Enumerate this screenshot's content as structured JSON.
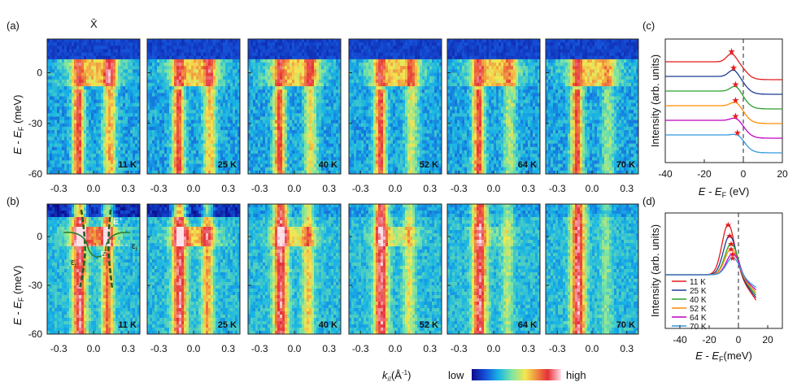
{
  "figure": {
    "panel_labels": {
      "a": "(a)",
      "b": "(b)",
      "c": "(c)",
      "d": "(d)"
    },
    "xbar_label": "X̄",
    "colorbar": {
      "low": "low",
      "high": "high",
      "colors": [
        "#0a0a8c",
        "#1550d8",
        "#18b4e6",
        "#7fe6a0",
        "#f5e650",
        "#f09040",
        "#e6303a",
        "#ffe0e8"
      ]
    },
    "row_axis": {
      "ylabel_a": "E - E",
      "ylabel_b": "E - E",
      "ylabel_sub": "F",
      "ylabel_unit": " (meV)",
      "yticks": [
        "0",
        "-30",
        "-60"
      ],
      "xticks": [
        "-0.3",
        "0.0",
        "0.3"
      ],
      "xlabel_k": "k",
      "xlabel_sub": "//",
      "xlabel_unit": "(Å",
      "xlabel_sup": "-1",
      "xlabel_close": ")"
    },
    "annotations_b": {
      "E": "E",
      "E_sup": "+",
      "E2": "E",
      "E2_sup": "-",
      "eps": "ε",
      "eps_sub": "f"
    }
  },
  "chart_data": [
    {
      "type": "heatmap",
      "panel": "a",
      "temperatures": [
        "11 K",
        "25 K",
        "40 K",
        "52 K",
        "64 K",
        "70 K"
      ],
      "xlim": [
        -0.4,
        0.4
      ],
      "ylim": [
        -60,
        20
      ],
      "xticks": [
        -0.3,
        0.0,
        0.3
      ],
      "yticks": [
        0,
        -30,
        -60
      ]
    },
    {
      "type": "heatmap",
      "panel": "b",
      "temperatures": [
        "11 K",
        "25 K",
        "40 K",
        "52 K",
        "64 K",
        "70 K"
      ],
      "xlim": [
        -0.4,
        0.4
      ],
      "ylim": [
        -60,
        20
      ],
      "xticks": [
        -0.3,
        0.0,
        0.3
      ],
      "yticks": [
        0,
        -30,
        -60
      ]
    },
    {
      "type": "line",
      "panel": "c",
      "xlabel": "E - E",
      "xlabel_sub": "F",
      "xlabel_unit": " (eV)",
      "ylabel": "Intensity (arb. units)",
      "xlim": [
        -40,
        20
      ],
      "xticks": [
        "-40",
        "-20",
        "0",
        "20"
      ],
      "series": [
        {
          "color": "#e41a1c",
          "offset": 5,
          "peak": -6
        },
        {
          "color": "#1f3a93",
          "offset": 4,
          "peak": -5
        },
        {
          "color": "#2ca02c",
          "offset": 3,
          "peak": -4
        },
        {
          "color": "#ff8c00",
          "offset": 2,
          "peak": -4
        },
        {
          "color": "#c000c0",
          "offset": 1,
          "peak": -4
        },
        {
          "color": "#3399dd",
          "offset": 0,
          "peak": -3
        }
      ]
    },
    {
      "type": "line",
      "panel": "d",
      "xlabel": "E - E",
      "xlabel_sub": "F",
      "xlabel_unit": "(meV)",
      "ylabel": "Intensity (arb. units)",
      "xlim": [
        -50,
        30
      ],
      "xticks": [
        "-40",
        "-20",
        "0",
        "20"
      ],
      "legend": "left",
      "series": [
        {
          "name": "11 K",
          "color": "#e41a1c",
          "peak": -7,
          "height": 1.0
        },
        {
          "name": "25 K",
          "color": "#1f3a93",
          "peak": -6,
          "height": 0.78
        },
        {
          "name": "40 K",
          "color": "#2ca02c",
          "peak": -5,
          "height": 0.62
        },
        {
          "name": "52 K",
          "color": "#ff8c00",
          "peak": -5,
          "height": 0.52
        },
        {
          "name": "64 K",
          "color": "#c000c0",
          "peak": -4,
          "height": 0.42
        },
        {
          "name": "70 K",
          "color": "#3399dd",
          "peak": -4,
          "height": 0.34
        }
      ]
    }
  ]
}
